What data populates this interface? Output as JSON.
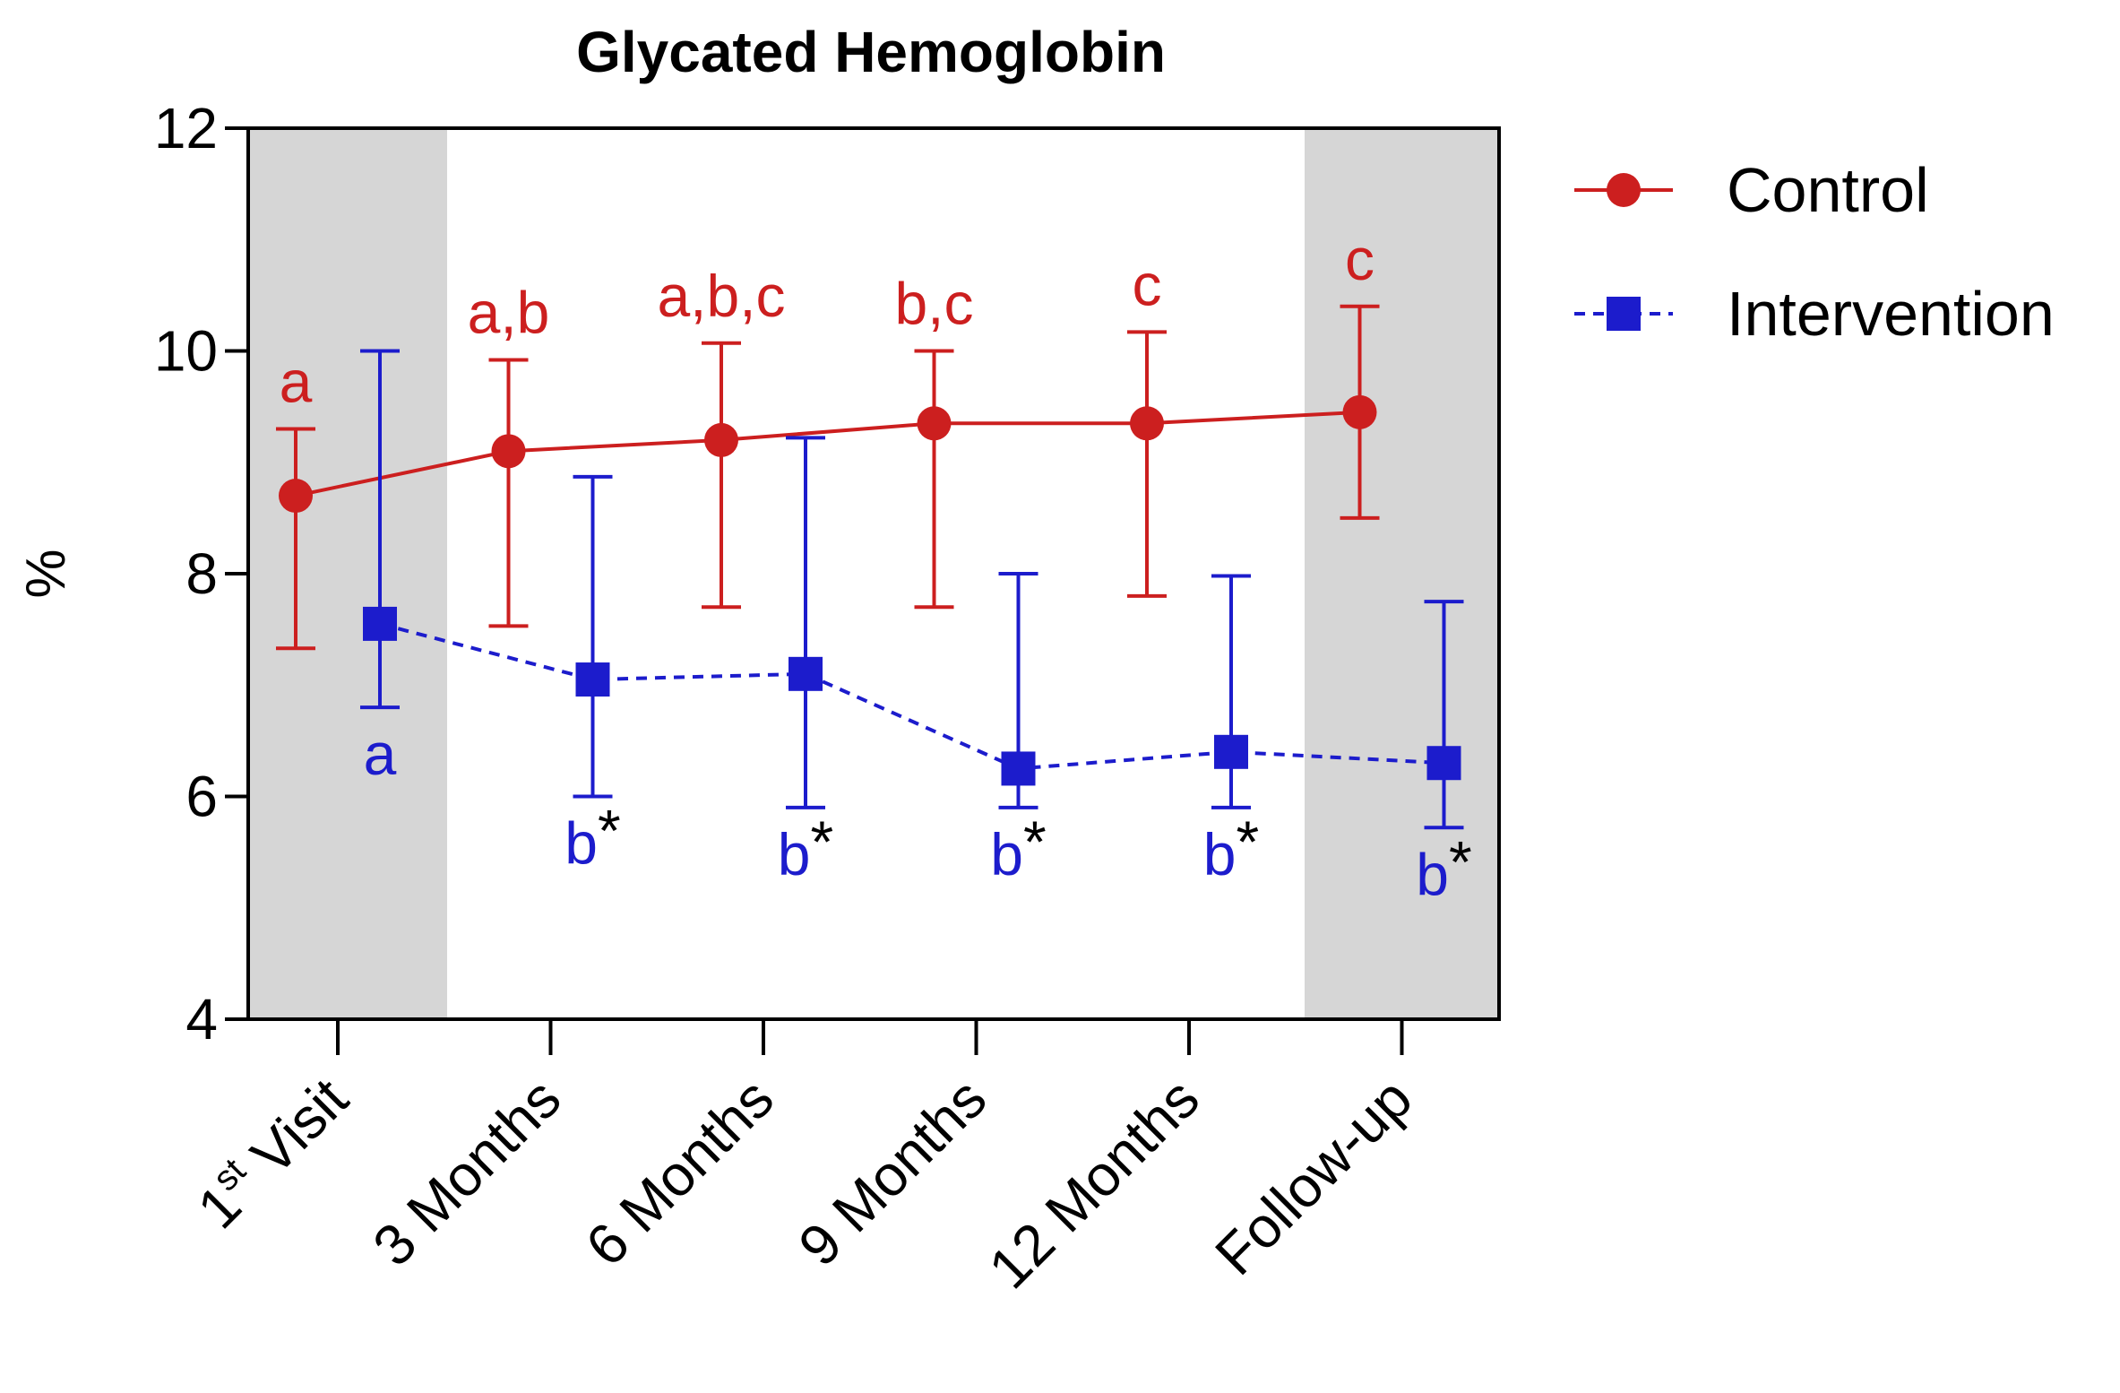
{
  "chart_data": {
    "type": "line",
    "title": "Glycated Hemoglobin",
    "xlabel": "",
    "ylabel": "%",
    "ylim": [
      4,
      12
    ],
    "yticks": [
      4,
      6,
      8,
      10,
      12
    ],
    "categories": [
      {
        "main": "1",
        "sup": "st",
        "rest": " Visit"
      },
      {
        "main": "3 Months",
        "sup": "",
        "rest": ""
      },
      {
        "main": "6 Months",
        "sup": "",
        "rest": ""
      },
      {
        "main": "9 Months",
        "sup": "",
        "rest": ""
      },
      {
        "main": "12 Months",
        "sup": "",
        "rest": ""
      },
      {
        "main": "Follow-up",
        "sup": "",
        "rest": ""
      }
    ],
    "shaded_categories": [
      0,
      5
    ],
    "legend_position": "right",
    "series": [
      {
        "name": "Control",
        "color": "#cc1f1f",
        "marker": "circle",
        "line": "solid",
        "values": [
          8.7,
          9.1,
          9.2,
          9.35,
          9.35,
          9.45
        ],
        "err_low": [
          7.33,
          7.53,
          7.7,
          7.7,
          7.8,
          8.5
        ],
        "err_high": [
          9.3,
          9.92,
          10.07,
          10.0,
          10.17,
          10.4
        ],
        "labels": [
          {
            "text": "a",
            "star": ""
          },
          {
            "text": "a,b",
            "star": ""
          },
          {
            "text": "a,b,c",
            "star": ""
          },
          {
            "text": "b,c",
            "star": ""
          },
          {
            "text": "c",
            "star": ""
          },
          {
            "text": "c",
            "star": ""
          }
        ]
      },
      {
        "name": "Intervention",
        "color": "#1c1ccc",
        "marker": "square",
        "line": "dashed",
        "values": [
          7.55,
          7.05,
          7.1,
          6.25,
          6.4,
          6.3
        ],
        "err_low": [
          6.8,
          6.0,
          5.9,
          5.9,
          5.9,
          5.72
        ],
        "err_high": [
          10.0,
          8.87,
          9.22,
          8.0,
          7.98,
          7.75
        ],
        "labels": [
          {
            "text": "a",
            "star": ""
          },
          {
            "text": "b",
            "star": "*"
          },
          {
            "text": "b",
            "star": "*"
          },
          {
            "text": "b",
            "star": "*"
          },
          {
            "text": "b",
            "star": "*"
          },
          {
            "text": "b",
            "star": "*"
          }
        ]
      }
    ]
  }
}
